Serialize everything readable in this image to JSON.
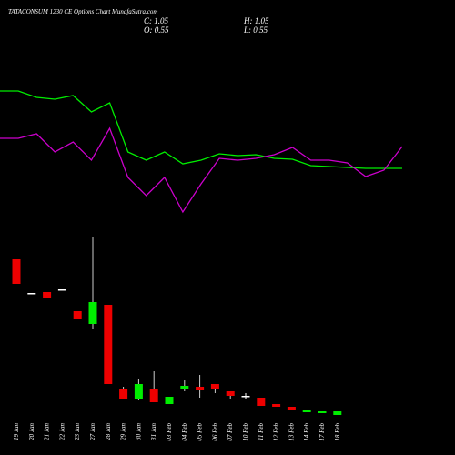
{
  "chart_data": [
    {
      "type": "line",
      "title": "TATACONSUM 1230 CE Options Chart MunafaSutra.com",
      "annotations": [
        "C: 1.05",
        "H: 1.05",
        "O: 0.55",
        "L: 0.55"
      ],
      "ylim": [
        0,
        100
      ],
      "series": [
        {
          "color": "#00ee00",
          "values": [
            75,
            75,
            71.5,
            70.5,
            72.5,
            63.5,
            68.5,
            41.5,
            37,
            41.5,
            35,
            37,
            40.5,
            39.5,
            40,
            38,
            37.5,
            34,
            33.5,
            33,
            32.5,
            32.5,
            32.5
          ]
        },
        {
          "color": "#cc00cc",
          "values": [
            49,
            49,
            51.5,
            41.5,
            47,
            37,
            54.5,
            27.5,
            17.5,
            27.5,
            8.5,
            24,
            38,
            37,
            38,
            40,
            44,
            37,
            37,
            35.5,
            28,
            31.5,
            44.5
          ]
        }
      ]
    },
    {
      "type": "candlestick",
      "categories": [
        "19 Jan",
        "20 Jan",
        "21 Jan",
        "22 Jan",
        "23 Jan",
        "27 Jan",
        "28 Jan",
        "29 Jan",
        "30 Jan",
        "31 Jan",
        "03 Feb",
        "04 Feb",
        "05 Feb",
        "06 Feb",
        "07 Feb",
        "10 Feb",
        "11 Feb",
        "12 Feb",
        "13 Feb",
        "14 Feb",
        "17 Feb",
        "18 Feb"
      ],
      "open": [
        35,
        27.6,
        27.8,
        28.4,
        23.6,
        20.8,
        25,
        6.6,
        4.4,
        6.4,
        3.2,
        6.6,
        7,
        7.6,
        6,
        5,
        4.6,
        3.2,
        2.6,
        1.4,
        1.2,
        0.8
      ],
      "high": [
        35,
        27.6,
        27.8,
        28.4,
        23.6,
        40,
        25,
        7,
        8.6,
        10.4,
        4.8,
        8.4,
        9.6,
        7.6,
        6,
        5.6,
        4.6,
        3.2,
        2.6,
        1.8,
        1.6,
        1.6
      ],
      "low": [
        29.6,
        27.6,
        26.6,
        28.4,
        22,
        19.6,
        7.6,
        4.4,
        4,
        3.6,
        3.2,
        6,
        4.6,
        5.6,
        4.2,
        4.4,
        2.8,
        2.6,
        2,
        1.4,
        1.2,
        0.8
      ],
      "close": [
        29.6,
        27.6,
        26.6,
        28.4,
        22,
        25.6,
        7.6,
        4.4,
        7.6,
        3.6,
        4.8,
        7.2,
        6.2,
        6.6,
        5,
        5,
        2.8,
        2.6,
        2,
        1.8,
        1.6,
        1.6
      ],
      "up_color": "#00ee00",
      "down_color": "#ee0000",
      "flat_color": "#ffffff",
      "ylim": [
        0,
        40
      ]
    }
  ]
}
